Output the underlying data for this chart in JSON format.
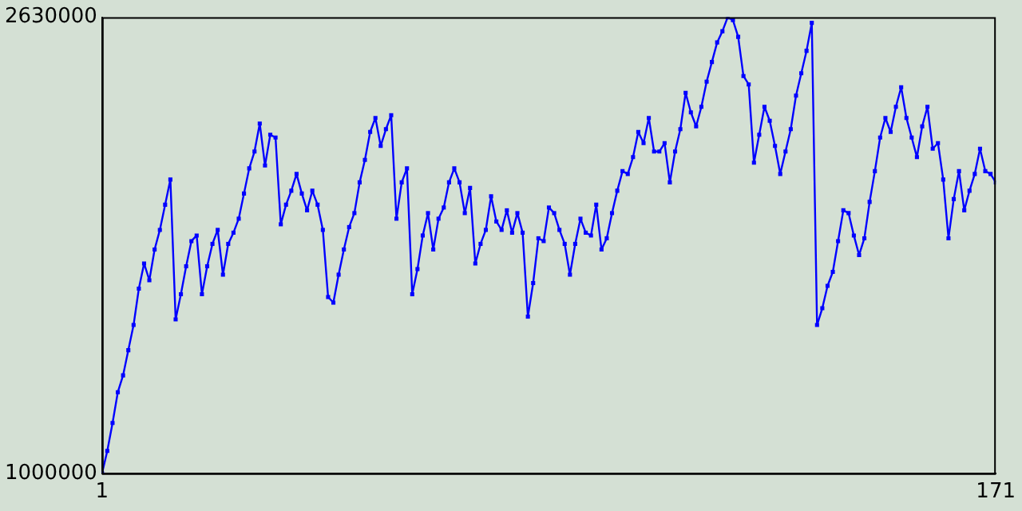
{
  "chart_data": {
    "type": "line",
    "x": [
      1,
      2,
      3,
      4,
      5,
      6,
      7,
      8,
      9,
      10,
      11,
      12,
      13,
      14,
      15,
      16,
      17,
      18,
      19,
      20,
      21,
      22,
      23,
      24,
      25,
      26,
      27,
      28,
      29,
      30,
      31,
      32,
      33,
      34,
      35,
      36,
      37,
      38,
      39,
      40,
      41,
      42,
      43,
      44,
      45,
      46,
      47,
      48,
      49,
      50,
      51,
      52,
      53,
      54,
      55,
      56,
      57,
      58,
      59,
      60,
      61,
      62,
      63,
      64,
      65,
      66,
      67,
      68,
      69,
      70,
      71,
      72,
      73,
      74,
      75,
      76,
      77,
      78,
      79,
      80,
      81,
      82,
      83,
      84,
      85,
      86,
      87,
      88,
      89,
      90,
      91,
      92,
      93,
      94,
      95,
      96,
      97,
      98,
      99,
      100,
      101,
      102,
      103,
      104,
      105,
      106,
      107,
      108,
      109,
      110,
      111,
      112,
      113,
      114,
      115,
      116,
      117,
      118,
      119,
      120,
      121,
      122,
      123,
      124,
      125,
      126,
      127,
      128,
      129,
      130,
      131,
      132,
      133,
      134,
      135,
      136,
      137,
      138,
      139,
      140,
      141,
      142,
      143,
      144,
      145,
      146,
      147,
      148,
      149,
      150,
      151,
      152,
      153,
      154,
      155,
      156,
      157,
      158,
      159,
      160,
      161,
      162,
      163,
      164,
      165,
      166,
      167,
      168,
      169,
      170,
      171
    ],
    "series": [
      {
        "color": "#0000ff",
        "values": [
          1000000,
          1080000,
          1180000,
          1290000,
          1350000,
          1440000,
          1530000,
          1660000,
          1750000,
          1690000,
          1800000,
          1870000,
          1960000,
          2050000,
          1550000,
          1640000,
          1740000,
          1830000,
          1850000,
          1640000,
          1740000,
          1820000,
          1870000,
          1710000,
          1820000,
          1860000,
          1910000,
          2000000,
          2090000,
          2150000,
          2250000,
          2100000,
          2210000,
          2200000,
          1890000,
          1960000,
          2010000,
          2070000,
          2000000,
          1940000,
          2010000,
          1960000,
          1870000,
          1630000,
          1610000,
          1710000,
          1800000,
          1880000,
          1930000,
          2040000,
          2120000,
          2220000,
          2270000,
          2170000,
          2230000,
          2280000,
          1910000,
          2040000,
          2090000,
          1640000,
          1730000,
          1850000,
          1930000,
          1800000,
          1910000,
          1950000,
          2040000,
          2090000,
          2040000,
          1930000,
          2020000,
          1750000,
          1820000,
          1870000,
          1990000,
          1900000,
          1870000,
          1940000,
          1860000,
          1930000,
          1860000,
          1560000,
          1680000,
          1840000,
          1830000,
          1950000,
          1930000,
          1870000,
          1820000,
          1710000,
          1820000,
          1910000,
          1860000,
          1850000,
          1960000,
          1800000,
          1840000,
          1930000,
          2010000,
          2080000,
          2070000,
          2130000,
          2220000,
          2180000,
          2270000,
          2150000,
          2150000,
          2180000,
          2040000,
          2150000,
          2230000,
          2360000,
          2290000,
          2240000,
          2310000,
          2400000,
          2470000,
          2540000,
          2580000,
          2630000,
          2620000,
          2560000,
          2420000,
          2390000,
          2110000,
          2210000,
          2310000,
          2260000,
          2170000,
          2070000,
          2150000,
          2230000,
          2350000,
          2430000,
          2510000,
          2610000,
          1530000,
          1590000,
          1670000,
          1720000,
          1830000,
          1940000,
          1930000,
          1850000,
          1780000,
          1840000,
          1970000,
          2080000,
          2200000,
          2270000,
          2220000,
          2310000,
          2380000,
          2270000,
          2200000,
          2130000,
          2240000,
          2310000,
          2160000,
          2180000,
          2050000,
          1840000,
          1980000,
          2080000,
          1940000,
          2010000,
          2070000,
          2160000,
          2080000,
          2070000,
          2040000
        ]
      }
    ],
    "xlim": [
      1,
      171
    ],
    "xticks": [
      1,
      171
    ],
    "ylim": [
      1000000,
      2630000
    ],
    "yticks": [
      1000000,
      2630000
    ],
    "marker": "square",
    "line_style": "solid",
    "grid": false,
    "legend": false
  }
}
